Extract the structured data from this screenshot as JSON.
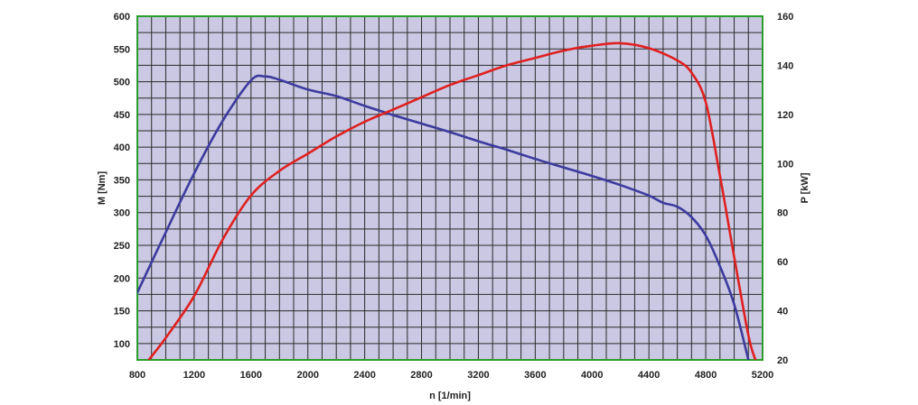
{
  "chart_data": {
    "type": "line",
    "xlabel": "n [1/min]",
    "ylabel_left": "M [Nm]",
    "ylabel_right": "P [kW]",
    "xlim": [
      800,
      5200
    ],
    "ylim_left": [
      75,
      600
    ],
    "ylim_right": [
      20,
      160
    ],
    "x_ticks": [
      800,
      1200,
      1600,
      2000,
      2400,
      2800,
      3200,
      3600,
      4000,
      4400,
      4800,
      5200
    ],
    "y_left_ticks": [
      100,
      150,
      200,
      250,
      300,
      350,
      400,
      450,
      500,
      550,
      600
    ],
    "y_right_ticks": [
      20,
      40,
      60,
      80,
      100,
      120,
      140,
      160
    ],
    "grid": true,
    "grid_step_x": 100,
    "grid_step_y_left": 25,
    "background_color": "#cac8e3",
    "grid_color": "#2a2a2a",
    "frame_color": "#2a9d2a",
    "series": [
      {
        "axis": "left",
        "color": "#3d3a9e",
        "points": [
          [
            800,
            178
          ],
          [
            1000,
            270
          ],
          [
            1200,
            360
          ],
          [
            1400,
            440
          ],
          [
            1600,
            502
          ],
          [
            1700,
            508
          ],
          [
            1800,
            503
          ],
          [
            2000,
            488
          ],
          [
            2200,
            478
          ],
          [
            2400,
            463
          ],
          [
            2600,
            449
          ],
          [
            2800,
            436
          ],
          [
            3000,
            423
          ],
          [
            3200,
            409
          ],
          [
            3400,
            396
          ],
          [
            3600,
            382
          ],
          [
            3800,
            369
          ],
          [
            4000,
            356
          ],
          [
            4200,
            342
          ],
          [
            4400,
            326
          ],
          [
            4500,
            315
          ],
          [
            4600,
            309
          ],
          [
            4700,
            293
          ],
          [
            4800,
            265
          ],
          [
            4900,
            218
          ],
          [
            5000,
            160
          ],
          [
            5100,
            75
          ]
        ]
      },
      {
        "axis": "right",
        "color": "#e02020",
        "points": [
          [
            880,
            20
          ],
          [
            1000,
            29
          ],
          [
            1200,
            46
          ],
          [
            1400,
            69
          ],
          [
            1600,
            87
          ],
          [
            1800,
            97
          ],
          [
            2000,
            104
          ],
          [
            2200,
            111
          ],
          [
            2400,
            117
          ],
          [
            2600,
            122
          ],
          [
            2800,
            127
          ],
          [
            3000,
            132
          ],
          [
            3200,
            136
          ],
          [
            3400,
            140
          ],
          [
            3600,
            143
          ],
          [
            3800,
            146
          ],
          [
            4000,
            148
          ],
          [
            4200,
            149
          ],
          [
            4400,
            147
          ],
          [
            4600,
            142
          ],
          [
            4700,
            137
          ],
          [
            4800,
            125
          ],
          [
            4900,
            95
          ],
          [
            5000,
            62
          ],
          [
            5100,
            30
          ],
          [
            5150,
            20
          ]
        ]
      }
    ]
  }
}
